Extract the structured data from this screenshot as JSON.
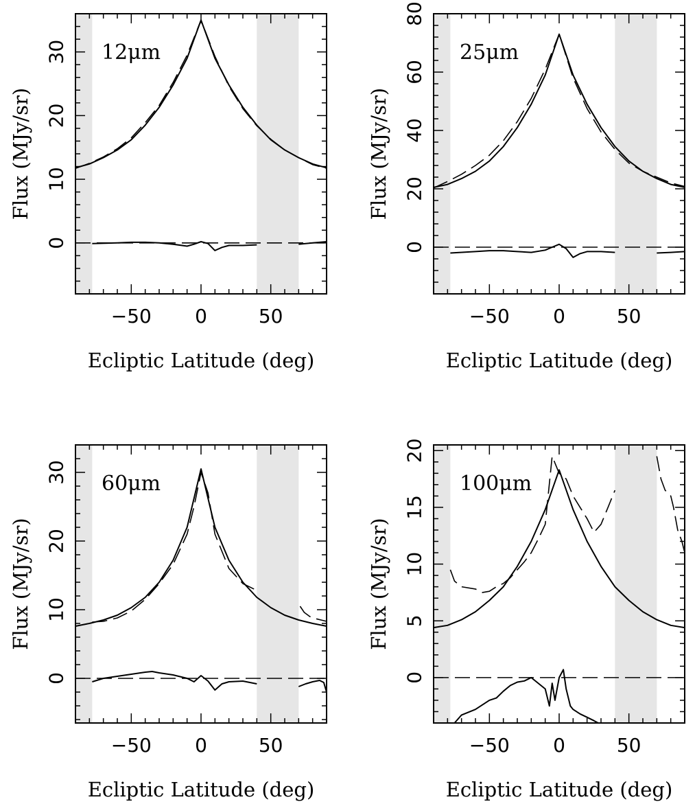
{
  "chart_data": [
    {
      "type": "line",
      "panel_label": "12μm",
      "xlabel": "Ecliptic Latitude (deg)",
      "ylabel": "Flux (MJy/sr)",
      "xlim": [
        -90,
        90
      ],
      "ylim": [
        -8,
        36
      ],
      "xticks": [
        -50,
        0,
        50
      ],
      "yticks": [
        0,
        10,
        20,
        30
      ],
      "shaded": [
        [
          -90,
          -78
        ],
        [
          40,
          70
        ]
      ],
      "zero_line": true,
      "series": [
        {
          "style": "solid",
          "x": [
            -90,
            -80,
            -70,
            -60,
            -50,
            -40,
            -30,
            -20,
            -10,
            0,
            10,
            20,
            30,
            40,
            50,
            60,
            70,
            80,
            90
          ],
          "y": [
            11.8,
            12.4,
            13.4,
            14.6,
            16.2,
            18.5,
            21.3,
            24.8,
            29.0,
            35.0,
            29.0,
            24.8,
            21.3,
            18.5,
            16.2,
            14.6,
            13.4,
            12.4,
            11.8
          ]
        },
        {
          "style": "dashed",
          "x": [
            -90,
            -80,
            -70,
            -60,
            -50,
            -40,
            -30,
            -20,
            -10,
            0,
            10,
            20,
            30,
            40,
            50,
            60,
            70,
            80,
            90
          ],
          "y": [
            11.7,
            12.5,
            13.5,
            14.8,
            16.5,
            18.9,
            21.6,
            25.2,
            29.5,
            35.0,
            29.3,
            24.6,
            21.1,
            18.4,
            16.3,
            14.6,
            13.4,
            12.3,
            11.7
          ]
        },
        {
          "style": "solid",
          "x": [
            -78,
            -60,
            -50,
            -40,
            -30,
            -20,
            -10,
            -5,
            0,
            5,
            10,
            15,
            20,
            30,
            40
          ],
          "y": [
            -0.1,
            0.0,
            0.1,
            0.1,
            0.0,
            -0.2,
            -0.5,
            -0.2,
            0.2,
            -0.1,
            -1.2,
            -0.7,
            -0.4,
            -0.4,
            -0.3
          ]
        },
        {
          "style": "solid",
          "x": [
            70,
            80,
            90
          ],
          "y": [
            -0.2,
            0.0,
            0.2
          ]
        }
      ]
    },
    {
      "type": "line",
      "panel_label": "25μm",
      "xlabel": "Ecliptic Latitude (deg)",
      "ylabel": "Flux (MJy/sr)",
      "xlim": [
        -90,
        90
      ],
      "ylim": [
        -16,
        80
      ],
      "xticks": [
        -50,
        0,
        50
      ],
      "yticks": [
        0,
        20,
        40,
        60,
        80
      ],
      "shaded": [
        [
          -90,
          -78
        ],
        [
          40,
          70
        ]
      ],
      "zero_line": true,
      "series": [
        {
          "style": "solid",
          "x": [
            -90,
            -80,
            -70,
            -60,
            -50,
            -40,
            -30,
            -20,
            -10,
            0,
            10,
            20,
            30,
            40,
            50,
            60,
            70,
            80,
            90
          ],
          "y": [
            20.5,
            21.5,
            23.5,
            26.0,
            29.5,
            34.5,
            41.0,
            49.0,
            59.0,
            73.0,
            59.0,
            49.0,
            41.0,
            34.5,
            29.5,
            26.0,
            23.5,
            21.5,
            20.5
          ]
        },
        {
          "style": "dashed",
          "x": [
            -90,
            -80,
            -70,
            -60,
            -50,
            -40,
            -30,
            -20,
            -10,
            0,
            10,
            20,
            30,
            40,
            50,
            60,
            70,
            80,
            90
          ],
          "y": [
            20.3,
            22.5,
            25.0,
            28.0,
            31.5,
            36.5,
            43.0,
            51.0,
            61.0,
            73.0,
            58.0,
            47.5,
            39.5,
            33.5,
            28.8,
            26.0,
            24.0,
            22.0,
            20.8
          ]
        },
        {
          "style": "solid",
          "x": [
            -78,
            -60,
            -50,
            -40,
            -30,
            -20,
            -10,
            -5,
            0,
            5,
            10,
            15,
            20,
            30,
            40
          ],
          "y": [
            -2.0,
            -1.5,
            -1.2,
            -1.2,
            -1.5,
            -1.8,
            -1.0,
            0.0,
            1.0,
            -0.5,
            -3.5,
            -2.2,
            -1.5,
            -1.5,
            -1.8
          ]
        },
        {
          "style": "solid",
          "x": [
            70,
            80,
            90
          ],
          "y": [
            -2.0,
            -1.8,
            -1.5
          ]
        }
      ]
    },
    {
      "type": "line",
      "panel_label": "60μm",
      "xlabel": "Ecliptic Latitude (deg)",
      "ylabel": "Flux (MJy/sr)",
      "xlim": [
        -90,
        90
      ],
      "ylim": [
        -6.5,
        34
      ],
      "xticks": [
        -50,
        0,
        50
      ],
      "yticks": [
        0,
        10,
        20,
        30
      ],
      "shaded": [
        [
          -90,
          -78
        ],
        [
          40,
          70
        ]
      ],
      "zero_line": true,
      "series": [
        {
          "style": "solid",
          "x": [
            -90,
            -80,
            -70,
            -60,
            -50,
            -40,
            -30,
            -20,
            -10,
            0,
            10,
            20,
            30,
            40,
            50,
            60,
            70,
            80,
            90
          ],
          "y": [
            7.6,
            8.0,
            8.5,
            9.2,
            10.3,
            11.8,
            14.0,
            17.2,
            22.0,
            30.5,
            22.0,
            17.2,
            14.0,
            11.8,
            10.3,
            9.2,
            8.5,
            8.0,
            7.6
          ]
        },
        {
          "style": "dashed",
          "x": [
            -78,
            -70,
            -60,
            -50,
            -40,
            -30,
            -20,
            -10,
            -5,
            0,
            5,
            10,
            20,
            30,
            38
          ],
          "y": [
            8.2,
            8.3,
            8.8,
            9.8,
            11.5,
            13.8,
            16.6,
            21.0,
            25.0,
            30.0,
            27.0,
            21.0,
            16.0,
            13.8,
            13.0
          ]
        },
        {
          "style": "dashed",
          "x": [
            71,
            74,
            78,
            82,
            86,
            90
          ],
          "y": [
            10.5,
            9.6,
            9.0,
            8.7,
            8.5,
            8.3
          ]
        },
        {
          "style": "solid",
          "x": [
            -78,
            -70,
            -60,
            -50,
            -40,
            -35,
            -30,
            -20,
            -10,
            -5,
            0,
            5,
            10,
            15,
            20,
            30,
            40
          ],
          "y": [
            -0.5,
            0.0,
            0.3,
            0.6,
            0.9,
            1.0,
            0.8,
            0.5,
            0.0,
            -0.5,
            0.4,
            -0.4,
            -1.7,
            -0.8,
            -0.5,
            -0.4,
            -0.8
          ]
        },
        {
          "style": "solid",
          "x": [
            70,
            75,
            80,
            85,
            88,
            90
          ],
          "y": [
            -1.2,
            -0.8,
            -0.5,
            -0.3,
            -0.6,
            -2.0
          ]
        }
      ]
    },
    {
      "type": "line",
      "panel_label": "100μm",
      "xlabel": "Ecliptic Latitude (deg)",
      "ylabel": "Flux (MJy/sr)",
      "xlim": [
        -90,
        90
      ],
      "ylim": [
        -4,
        20.5
      ],
      "xticks": [
        -50,
        0,
        50
      ],
      "yticks": [
        0,
        5,
        10,
        15,
        20
      ],
      "shaded": [
        [
          -90,
          -78
        ],
        [
          40,
          70
        ]
      ],
      "zero_line": true,
      "series": [
        {
          "style": "solid",
          "x": [
            -90,
            -80,
            -70,
            -60,
            -50,
            -40,
            -30,
            -20,
            -10,
            0,
            10,
            20,
            30,
            40,
            50,
            60,
            70,
            80,
            90
          ],
          "y": [
            4.4,
            4.6,
            5.1,
            5.8,
            6.8,
            8.0,
            9.8,
            12.0,
            14.8,
            18.3,
            14.8,
            12.0,
            9.8,
            8.0,
            6.8,
            5.8,
            5.1,
            4.6,
            4.4
          ]
        },
        {
          "style": "dashed",
          "x": [
            -78,
            -75,
            -70,
            -60,
            -55,
            -50,
            -45,
            -40,
            -35,
            -30,
            -25,
            -20,
            -15,
            -10,
            -5,
            0,
            5,
            10,
            15,
            20,
            25,
            30,
            35,
            40
          ],
          "y": [
            9.5,
            8.5,
            8.0,
            7.8,
            7.5,
            7.6,
            8.0,
            8.3,
            8.8,
            9.5,
            10.2,
            11.0,
            12.2,
            13.5,
            19.5,
            18.0,
            17.5,
            16.0,
            15.0,
            14.0,
            12.8,
            13.5,
            15.0,
            16.5
          ]
        },
        {
          "style": "dashed",
          "x": [
            70,
            73,
            76,
            80,
            82,
            85,
            88,
            90
          ],
          "y": [
            19.5,
            17.5,
            16.5,
            16.0,
            15.0,
            13.0,
            12.0,
            11.0
          ]
        },
        {
          "style": "solid",
          "x": [
            -75,
            -70,
            -60,
            -50,
            -45,
            -40,
            -35,
            -30,
            -25,
            -20,
            -15,
            -10,
            -7,
            -5,
            -3,
            0,
            3,
            5,
            8,
            10,
            15,
            20,
            25,
            28
          ],
          "y": [
            -4.0,
            -3.3,
            -2.8,
            -2.0,
            -1.8,
            -1.2,
            -0.7,
            -0.4,
            -0.3,
            0.0,
            -0.5,
            -1.0,
            -2.5,
            -0.5,
            -2.0,
            0.0,
            0.7,
            -1.0,
            -2.5,
            -2.8,
            -3.2,
            -3.5,
            -3.8,
            -4.0
          ]
        }
      ]
    }
  ]
}
